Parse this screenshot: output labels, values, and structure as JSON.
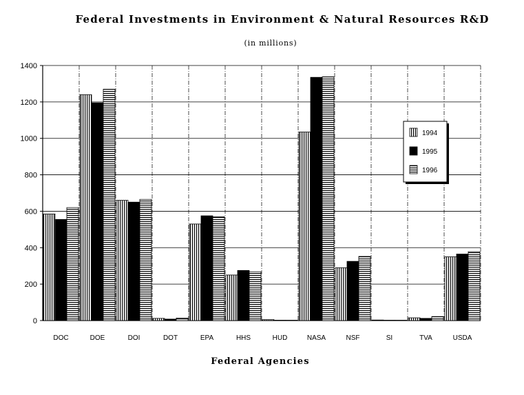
{
  "chart_data": {
    "type": "bar",
    "title": "Federal Investments in Environment & Natural Resources R&D",
    "subtitle": "(in millions)",
    "xlabel": "Federal Agencies",
    "ylabel": "",
    "ylim": [
      0,
      1400
    ],
    "yticks": [
      0,
      200,
      400,
      600,
      800,
      1000,
      1200,
      1400
    ],
    "grid": true,
    "legend_position": "right",
    "categories": [
      "DOC",
      "DOE",
      "DOI",
      "DOT",
      "EPA",
      "HHS",
      "HUD",
      "NASA",
      "NSF",
      "SI",
      "TVA",
      "USDA"
    ],
    "series": [
      {
        "name": "1994",
        "pattern": "vertical-stripes",
        "values": [
          585,
          1240,
          660,
          12,
          530,
          250,
          5,
          1035,
          290,
          3,
          15,
          350
        ]
      },
      {
        "name": "1995",
        "pattern": "solid-black",
        "values": [
          555,
          1195,
          650,
          8,
          575,
          275,
          2,
          1335,
          325,
          2,
          12,
          365
        ]
      },
      {
        "name": "1996",
        "pattern": "horizontal-stripes",
        "values": [
          620,
          1270,
          665,
          14,
          570,
          268,
          1,
          1338,
          352,
          1,
          22,
          378
        ]
      }
    ],
    "colors": {
      "ink": "#000000",
      "background": "#ffffff"
    }
  }
}
